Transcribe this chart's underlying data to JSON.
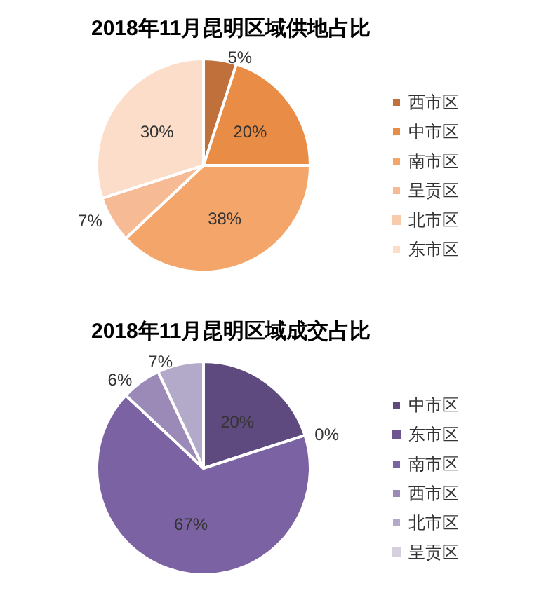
{
  "chart_data": [
    {
      "type": "pie",
      "title": "2018年11月昆明区域供地占比",
      "categories": [
        "西市区",
        "中市区",
        "南市区",
        "呈贡区",
        "北市区",
        "东市区"
      ],
      "values": [
        5,
        20,
        38,
        7,
        0,
        30
      ],
      "colors": [
        "#c0703a",
        "#e98c45",
        "#f4a66a",
        "#f6bb94",
        "#f8cbad",
        "#fbddc9"
      ],
      "value_labels": [
        "5%",
        "20%",
        "38%",
        "7%",
        null,
        "30%"
      ],
      "legend": "right"
    },
    {
      "type": "pie",
      "title": "2018年11月昆明区域成交占比",
      "categories": [
        "中市区",
        "东市区",
        "南市区",
        "西市区",
        "北市区",
        "呈贡区"
      ],
      "values": [
        20,
        0,
        67,
        6,
        7,
        0
      ],
      "colors": [
        "#5e4a7e",
        "#6e5591",
        "#7b62a3",
        "#9b8ab8",
        "#b3a9c8",
        "#d5cfe0"
      ],
      "value_labels": [
        "20%",
        "0%",
        "67%",
        "6%",
        "7%",
        null
      ],
      "legend": "right"
    }
  ]
}
